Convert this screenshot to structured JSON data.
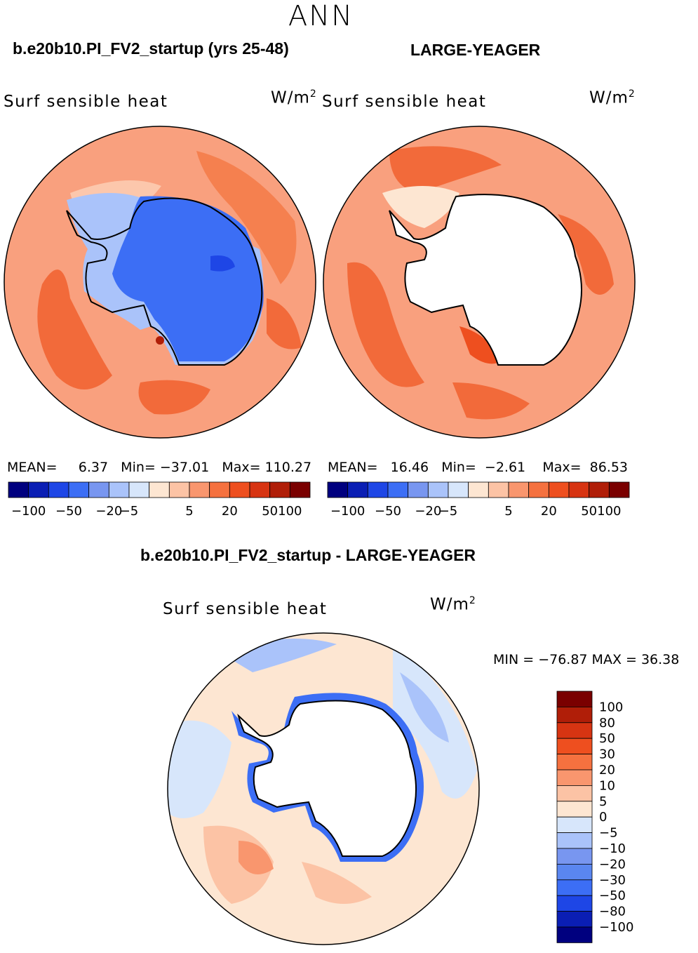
{
  "title": "ANN",
  "panels": [
    {
      "case_title": "b.e20b10.PI_FV2_startup (yrs 25-48)",
      "variable": "Surf sensible heat",
      "units_base": "W/m",
      "units_exp": "2",
      "stats": {
        "mean_label": "MEAN=",
        "mean": "6.37",
        "min_label": "Min=",
        "min": "−37.01",
        "max_label": "Max=",
        "max": "110.27"
      }
    },
    {
      "case_title": "LARGE-YEAGER",
      "variable": "Surf sensible heat",
      "units_base": "W/m",
      "units_exp": "2",
      "stats": {
        "mean_label": "MEAN=",
        "mean": "16.46",
        "min_label": "Min=",
        "min": "−2.61",
        "max_label": "Max=",
        "max": "86.53"
      }
    }
  ],
  "diff_panel": {
    "title": "b.e20b10.PI_FV2_startup - LARGE-YEAGER",
    "variable": "Surf sensible heat",
    "units_base": "W/m",
    "units_exp": "2",
    "minmax": "MIN = −76.87  MAX =   36.38"
  },
  "colorbar_main": {
    "colors": [
      "#00007f",
      "#0a1eb4",
      "#1e46e6",
      "#3c6ef5",
      "#7896f0",
      "#aac3fa",
      "#d7e6fb",
      "#fde6d2",
      "#fcc3a5",
      "#f9966e",
      "#f5713f",
      "#ee4f1f",
      "#d73412",
      "#b01e08",
      "#7a0000"
    ],
    "tick_labels": [
      "−100",
      "−50",
      "−20",
      "−5",
      "5",
      "20",
      "50",
      "100"
    ]
  },
  "colorbar_diff": {
    "colors": [
      "#00007f",
      "#0a1eb4",
      "#1e46e6",
      "#3c6ef5",
      "#5a86f0",
      "#7896f0",
      "#aac3fa",
      "#d7e6fb",
      "#fde6d2",
      "#fcc3a5",
      "#f9966e",
      "#f5713f",
      "#ee4f1f",
      "#d73412",
      "#b01e08",
      "#7a0000"
    ],
    "tick_labels": [
      "100",
      "80",
      "50",
      "30",
      "20",
      "10",
      "5",
      "0",
      "−5",
      "−10",
      "−20",
      "−30",
      "−50",
      "−80",
      "−100"
    ]
  }
}
